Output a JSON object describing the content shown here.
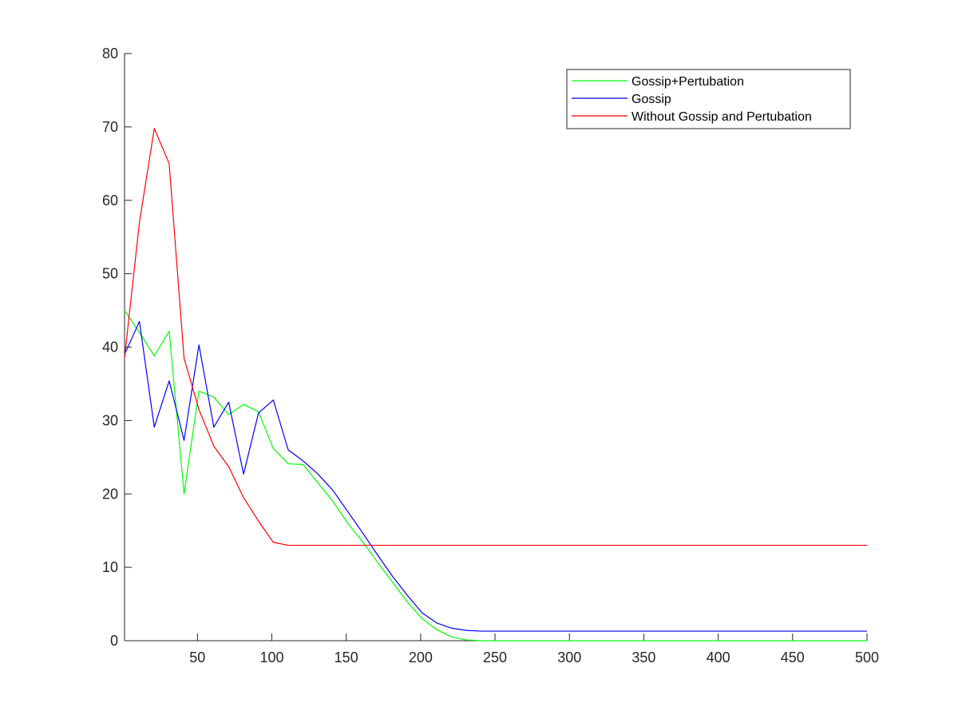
{
  "chart_data": {
    "type": "line",
    "title": "",
    "xlabel": "",
    "ylabel": "",
    "xlim": [
      1,
      500
    ],
    "ylim": [
      0,
      80
    ],
    "xticks": [
      50,
      100,
      150,
      200,
      250,
      300,
      350,
      400,
      450,
      500
    ],
    "yticks": [
      0,
      10,
      20,
      30,
      40,
      50,
      60,
      70,
      80
    ],
    "grid": false,
    "legend_position": "top-right",
    "x": [
      1,
      11,
      21,
      31,
      41,
      51,
      61,
      71,
      81,
      91,
      101,
      111,
      121,
      131,
      141,
      151,
      161,
      171,
      181,
      191,
      201,
      211,
      221,
      231,
      241,
      251,
      261,
      271,
      281,
      291,
      301,
      311,
      321,
      331,
      341,
      351,
      361,
      371,
      381,
      391,
      401,
      411,
      421,
      431,
      441,
      451,
      461,
      471,
      481,
      491,
      500
    ],
    "series": [
      {
        "name": "Gossip+Pertubation",
        "color": "#00ff00",
        "values": [
          45,
          42,
          38.8,
          42.2,
          20,
          34,
          33.2,
          30.8,
          32.2,
          31.2,
          26.2,
          24.1,
          24,
          21.5,
          19,
          16,
          13.5,
          10.7,
          8,
          5.3,
          3,
          1.5,
          0.5,
          0.1,
          0,
          0,
          0,
          0,
          0,
          0,
          0,
          0,
          0,
          0,
          0,
          0,
          0,
          0,
          0,
          0,
          0,
          0,
          0,
          0,
          0,
          0,
          0,
          0,
          0,
          0,
          0
        ]
      },
      {
        "name": "Gossip",
        "color": "#0000ff",
        "values": [
          39,
          43.5,
          29.1,
          35.4,
          27.3,
          40.3,
          29.1,
          32.5,
          22.7,
          31,
          32.8,
          26,
          24.5,
          22.7,
          20.5,
          17.6,
          14.7,
          11.7,
          8.8,
          6.2,
          3.8,
          2.4,
          1.7,
          1.4,
          1.3,
          1.3,
          1.3,
          1.3,
          1.3,
          1.3,
          1.3,
          1.3,
          1.3,
          1.3,
          1.3,
          1.3,
          1.3,
          1.3,
          1.3,
          1.3,
          1.3,
          1.3,
          1.3,
          1.3,
          1.3,
          1.3,
          1.3,
          1.3,
          1.3,
          1.3,
          1.3
        ]
      },
      {
        "name": "Without Gossip and Pertubation",
        "color": "#ff0000",
        "values": [
          38.5,
          57,
          69.8,
          65,
          38.5,
          31.5,
          26.5,
          23.7,
          19.5,
          16.3,
          13.4,
          13,
          13,
          13,
          13,
          13,
          13,
          13,
          13,
          13,
          13,
          13,
          13,
          13,
          13,
          13,
          13,
          13,
          13,
          13,
          13,
          13,
          13,
          13,
          13,
          13,
          13,
          13,
          13,
          13,
          13,
          13,
          13,
          13,
          13,
          13,
          13,
          13,
          13,
          13,
          13
        ]
      }
    ]
  }
}
